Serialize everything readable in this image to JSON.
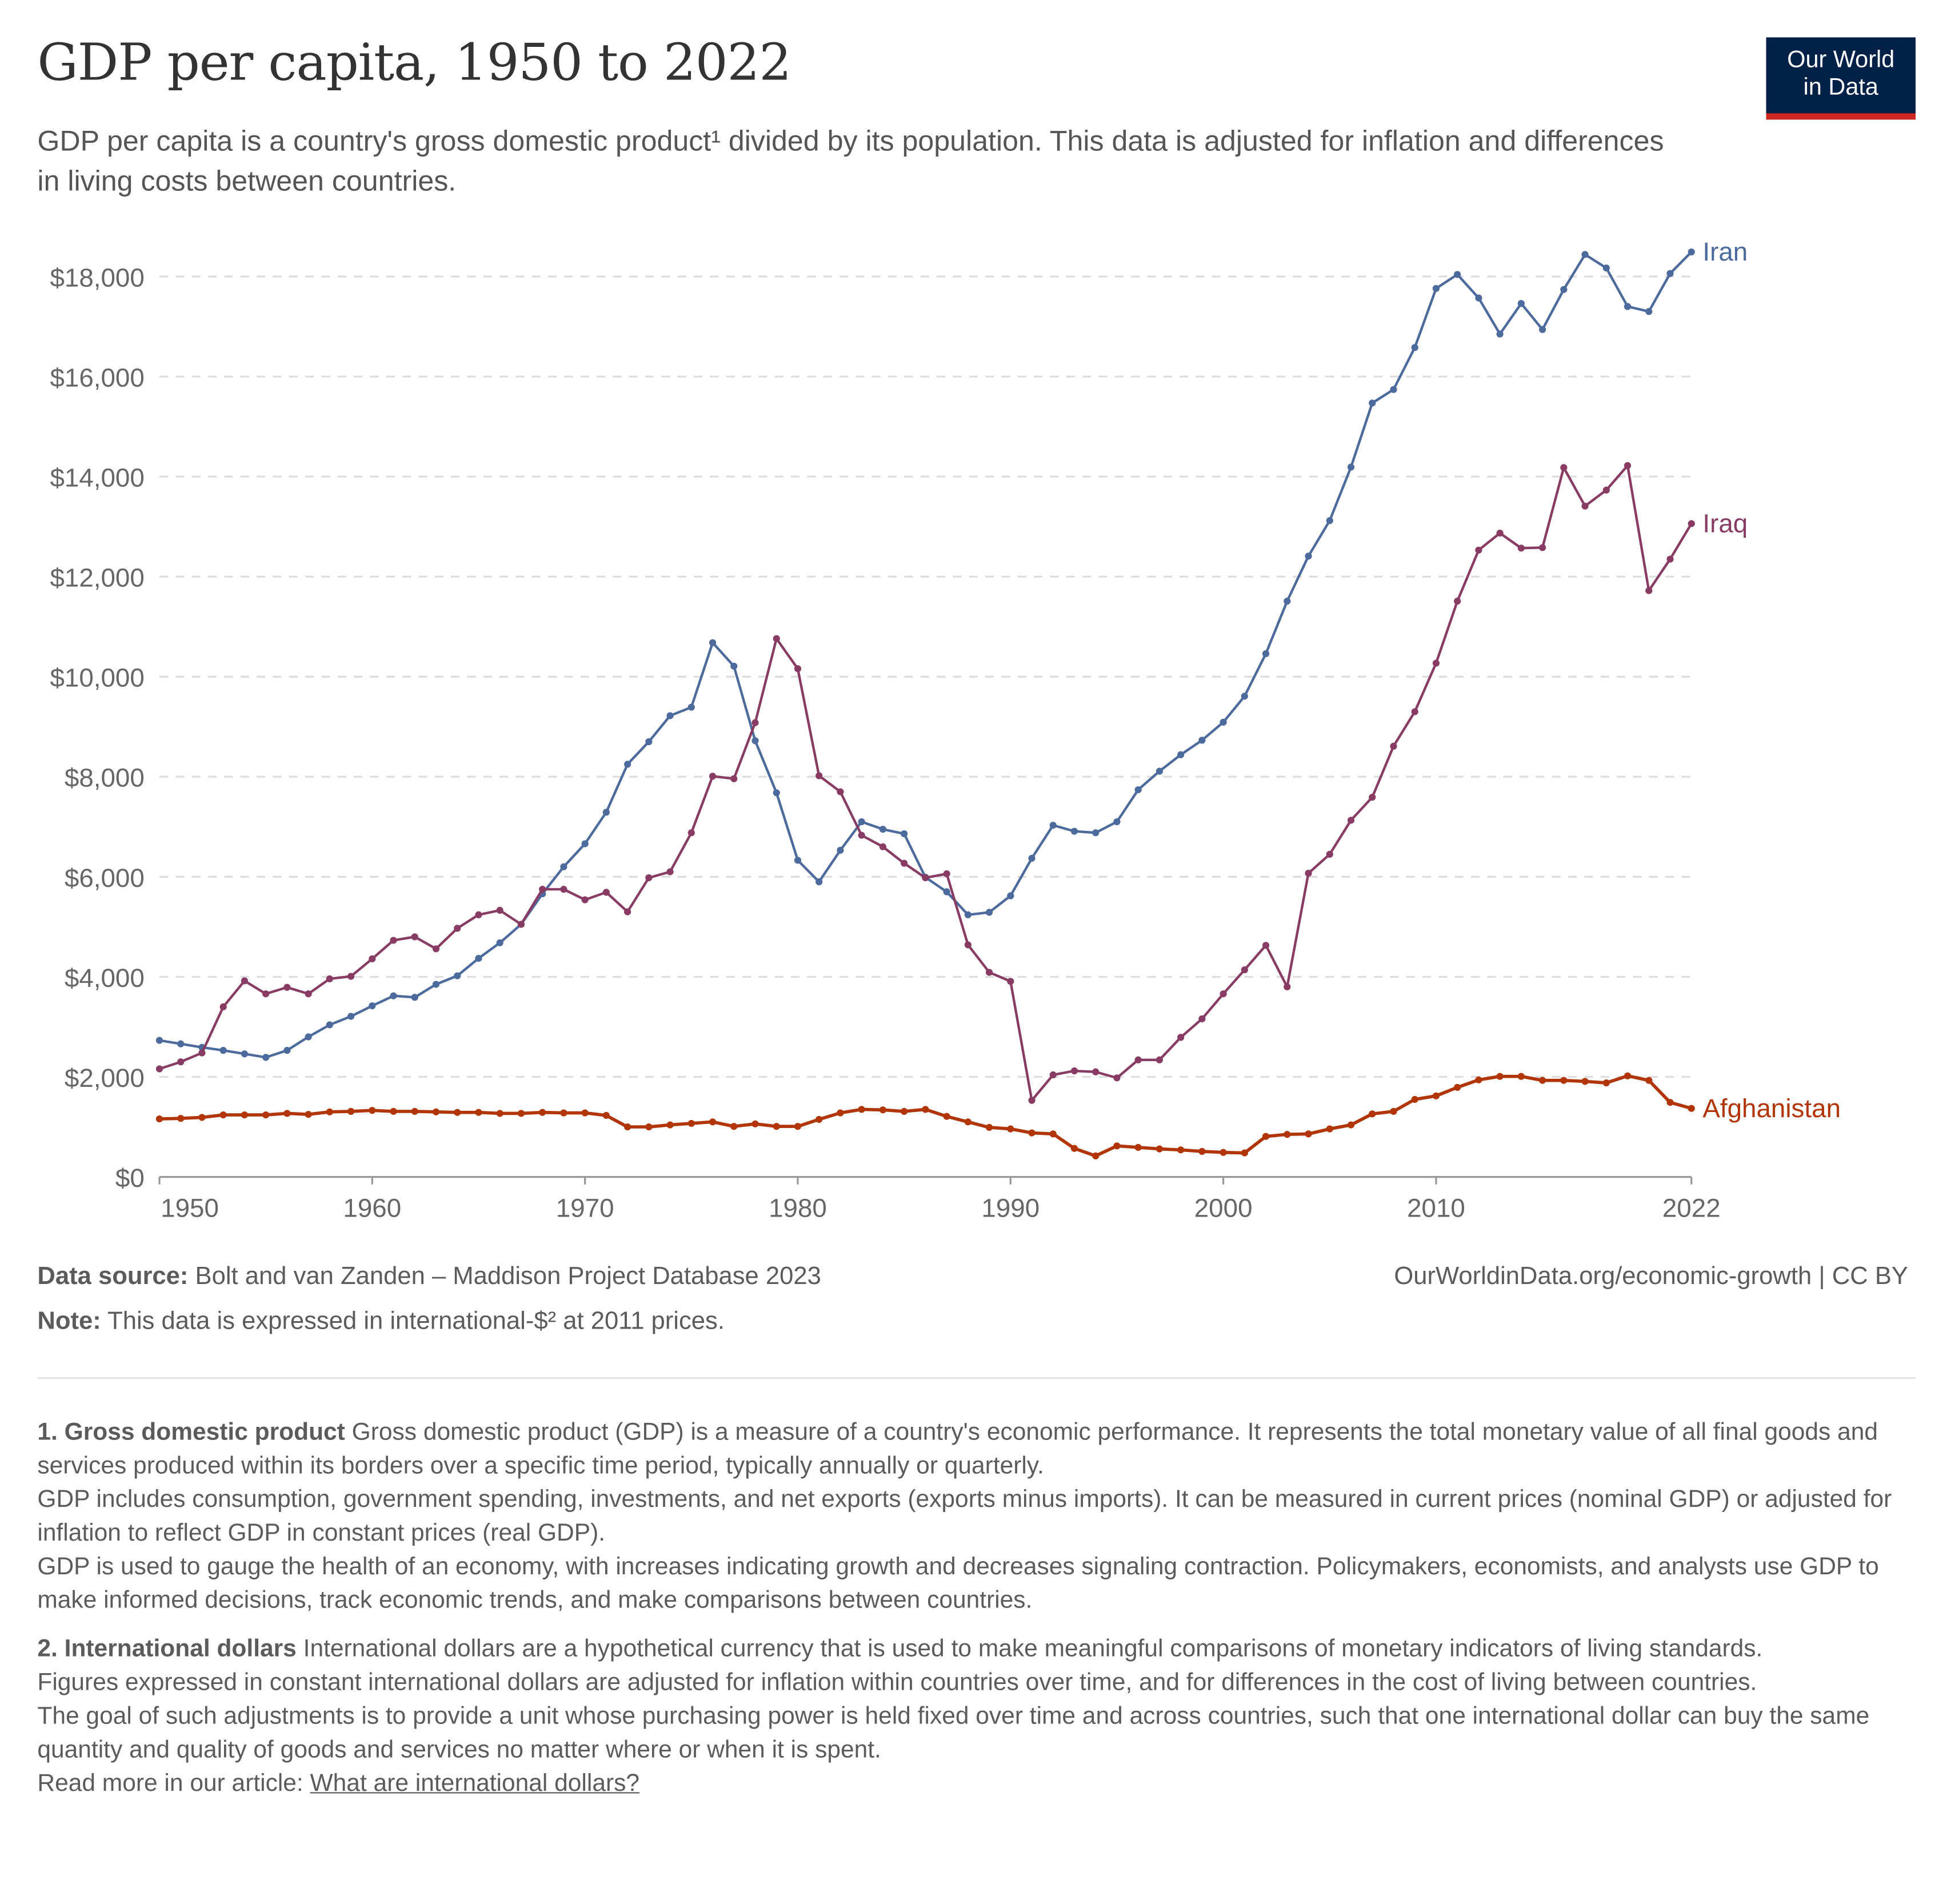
{
  "header": {
    "title": "GDP per capita, 1950 to 2022",
    "subtitle": "GDP per capita is a country's gross domestic product¹ divided by its population. This data is adjusted for inflation and differences in living costs between countries.",
    "logo_line1": "Our World",
    "logo_line2": "in Data"
  },
  "chart_data": {
    "type": "line",
    "title": "GDP per capita, 1950 to 2022",
    "xlabel": "",
    "ylabel": "",
    "xlim": [
      1950,
      2022
    ],
    "ylim": [
      0,
      18000
    ],
    "grid": "horizontal dashed",
    "legend": "right end labels",
    "y_ticks": [
      "$0",
      "$2,000",
      "$4,000",
      "$6,000",
      "$8,000",
      "$10,000",
      "$12,000",
      "$14,000",
      "$16,000",
      "$18,000"
    ],
    "y_tick_values": [
      0,
      2000,
      4000,
      6000,
      8000,
      10000,
      12000,
      14000,
      16000,
      18000
    ],
    "x_ticks": [
      "1950",
      "1960",
      "1970",
      "1980",
      "1990",
      "2000",
      "2010",
      "2022"
    ],
    "x_tick_values": [
      1950,
      1960,
      1970,
      1980,
      1990,
      2000,
      2010,
      2022
    ],
    "x_start": 1950,
    "series": [
      {
        "name": "Iran",
        "color": "#4c6a9c",
        "values": [
          2730,
          2660,
          2590,
          2530,
          2460,
          2390,
          2530,
          2800,
          3040,
          3210,
          3420,
          3620,
          3590,
          3850,
          4020,
          4370,
          4680,
          5050,
          5660,
          6200,
          6660,
          7290,
          8250,
          8700,
          9220,
          9390,
          10680,
          10210,
          8720,
          7680,
          6330,
          5900,
          6530,
          7100,
          6950,
          6860,
          5990,
          5700,
          5240,
          5290,
          5620,
          6370,
          7030,
          6910,
          6880,
          7100,
          7740,
          8110,
          8440,
          8730,
          9090,
          9610,
          10460,
          11510,
          12410,
          13120,
          14190,
          15470,
          15740,
          16580,
          17760,
          18040,
          17570,
          16850,
          17460,
          16940,
          17740,
          18440,
          18170,
          17400,
          17300,
          18060,
          18490
        ]
      },
      {
        "name": "Iraq",
        "color": "#883c64",
        "values": [
          2160,
          2300,
          2480,
          3400,
          3920,
          3660,
          3790,
          3660,
          3960,
          4010,
          4360,
          4730,
          4800,
          4560,
          4970,
          5240,
          5330,
          5050,
          5750,
          5750,
          5540,
          5690,
          5300,
          5980,
          6100,
          6880,
          8010,
          7960,
          9080,
          10760,
          10160,
          8020,
          7700,
          6830,
          6600,
          6270,
          5980,
          6060,
          4640,
          4090,
          3910,
          1530,
          2040,
          2120,
          2100,
          1980,
          2340,
          2340,
          2790,
          3160,
          3660,
          4140,
          4630,
          3800,
          6070,
          6450,
          7130,
          7590,
          8610,
          9300,
          10270,
          11510,
          12530,
          12870,
          12570,
          12580,
          14180,
          13410,
          13730,
          14220,
          11720,
          12350,
          13060
        ]
      },
      {
        "name": "Afghanistan",
        "color": "#b13507",
        "values": [
          1160,
          1170,
          1190,
          1240,
          1240,
          1240,
          1270,
          1250,
          1300,
          1310,
          1330,
          1310,
          1310,
          1300,
          1290,
          1290,
          1270,
          1270,
          1290,
          1280,
          1280,
          1230,
          1000,
          1000,
          1040,
          1070,
          1100,
          1010,
          1060,
          1010,
          1010,
          1150,
          1280,
          1350,
          1340,
          1310,
          1350,
          1210,
          1100,
          990,
          960,
          880,
          860,
          570,
          420,
          620,
          590,
          560,
          540,
          510,
          490,
          480,
          810,
          850,
          860,
          960,
          1040,
          1260,
          1310,
          1550,
          1620,
          1790,
          1940,
          2010,
          2010,
          1930,
          1930,
          1910,
          1880,
          2020,
          1930,
          1490,
          1370
        ]
      }
    ]
  },
  "footer": {
    "source_label": "Data source:",
    "source_text": " Bolt and van Zanden – Maddison Project Database 2023",
    "url": "OurWorldinData.org/economic-growth | CC BY",
    "note_label": "Note:",
    "note_text": " This data is expressed in international-$² at 2011 prices."
  },
  "notes": {
    "n1_title": "1. Gross domestic product",
    "n1_p1": " Gross domestic product (GDP) is a measure of a country's economic performance. It represents the total monetary value of all final goods and services produced within its borders over a specific time period, typically annually or quarterly.",
    "n1_p2": "GDP includes consumption, government spending, investments, and net exports (exports minus imports). It can be measured in current prices (nominal GDP) or adjusted for inflation to reflect GDP in constant prices (real GDP).",
    "n1_p3": "GDP is used to gauge the health of an economy, with increases indicating growth and decreases signaling contraction. Policymakers, economists, and analysts use GDP to make informed decisions, track economic trends, and make comparisons between countries.",
    "n2_title": "2. International dollars",
    "n2_p1": " International dollars are a hypothetical currency that is used to make meaningful comparisons of monetary indicators of living standards.",
    "n2_p2": "Figures expressed in constant international dollars are adjusted for inflation within countries over time, and for differences in the cost of living between countries.",
    "n2_p3": "The goal of such adjustments is to provide a unit whose purchasing power is held fixed over time and across countries, such that one international dollar can buy the same quantity and quality of goods and services no matter where or when it is spent.",
    "read_more": "Read more in our article: ",
    "link": "What are international dollars?"
  }
}
